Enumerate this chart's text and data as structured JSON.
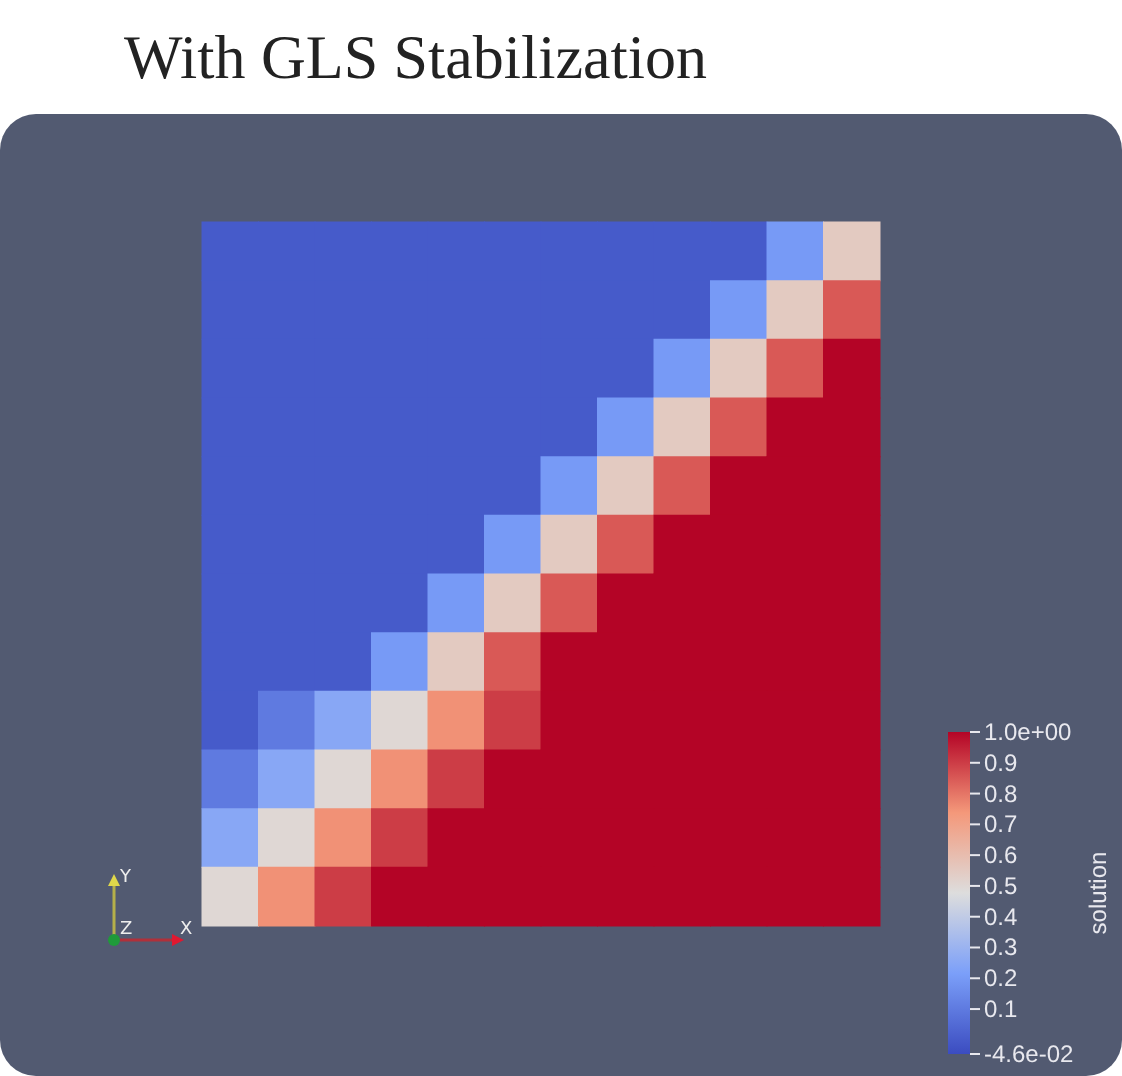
{
  "chart_data": {
    "type": "heatmap",
    "title": "With GLS Stabilization",
    "clabel": "solution",
    "annotations": [
      "Y",
      "Z",
      "X"
    ],
    "categories": [
      null,
      null,
      null,
      null,
      null,
      null,
      null,
      null,
      null,
      null,
      null,
      null
    ],
    "y_categories": [
      null,
      null,
      null,
      null,
      null,
      null,
      null,
      null,
      null,
      null,
      null,
      null
    ],
    "cells": [
      [
        0,
        0,
        0,
        0,
        0,
        0,
        0,
        0,
        0,
        0,
        0.2,
        0.55
      ],
      [
        0,
        0,
        0,
        0,
        0,
        0,
        0,
        0,
        0,
        0.2,
        0.55,
        0.85
      ],
      [
        0,
        0,
        0,
        0,
        0,
        0,
        0,
        0,
        0.2,
        0.55,
        0.85,
        1
      ],
      [
        0,
        0,
        0,
        0,
        0,
        0,
        0,
        0.2,
        0.55,
        0.85,
        1,
        1
      ],
      [
        0,
        0,
        0,
        0,
        0,
        0,
        0.2,
        0.55,
        0.85,
        1,
        1,
        1
      ],
      [
        0,
        0,
        0,
        0,
        0,
        0.2,
        0.55,
        0.85,
        1,
        1,
        1,
        1
      ],
      [
        0,
        0,
        0,
        0,
        0.2,
        0.55,
        0.85,
        1,
        1,
        1,
        1,
        1
      ],
      [
        0,
        0,
        0,
        0.2,
        0.55,
        0.85,
        1,
        1,
        1,
        1,
        1,
        1
      ],
      [
        0,
        0.1,
        0.25,
        0.5,
        0.75,
        0.9,
        1,
        1,
        1,
        1,
        1,
        1
      ],
      [
        0.1,
        0.25,
        0.5,
        0.75,
        0.9,
        1,
        1,
        1,
        1,
        1,
        1,
        1
      ],
      [
        0.25,
        0.5,
        0.75,
        0.9,
        1,
        1,
        1,
        1,
        1,
        1,
        1,
        1
      ],
      [
        0.5,
        0.75,
        0.9,
        1,
        1,
        1,
        1,
        1,
        1,
        1,
        1,
        1
      ]
    ],
    "clim": [
      -0.046,
      1
    ],
    "cticks": [
      {
        "value": 1,
        "label": "1.0e+00"
      },
      0.9,
      0.8,
      0.7,
      0.6,
      0.5,
      0.4,
      0.3,
      0.2,
      0.1,
      {
        "value": -0.046,
        "label": "-4.6e-02"
      }
    ]
  }
}
